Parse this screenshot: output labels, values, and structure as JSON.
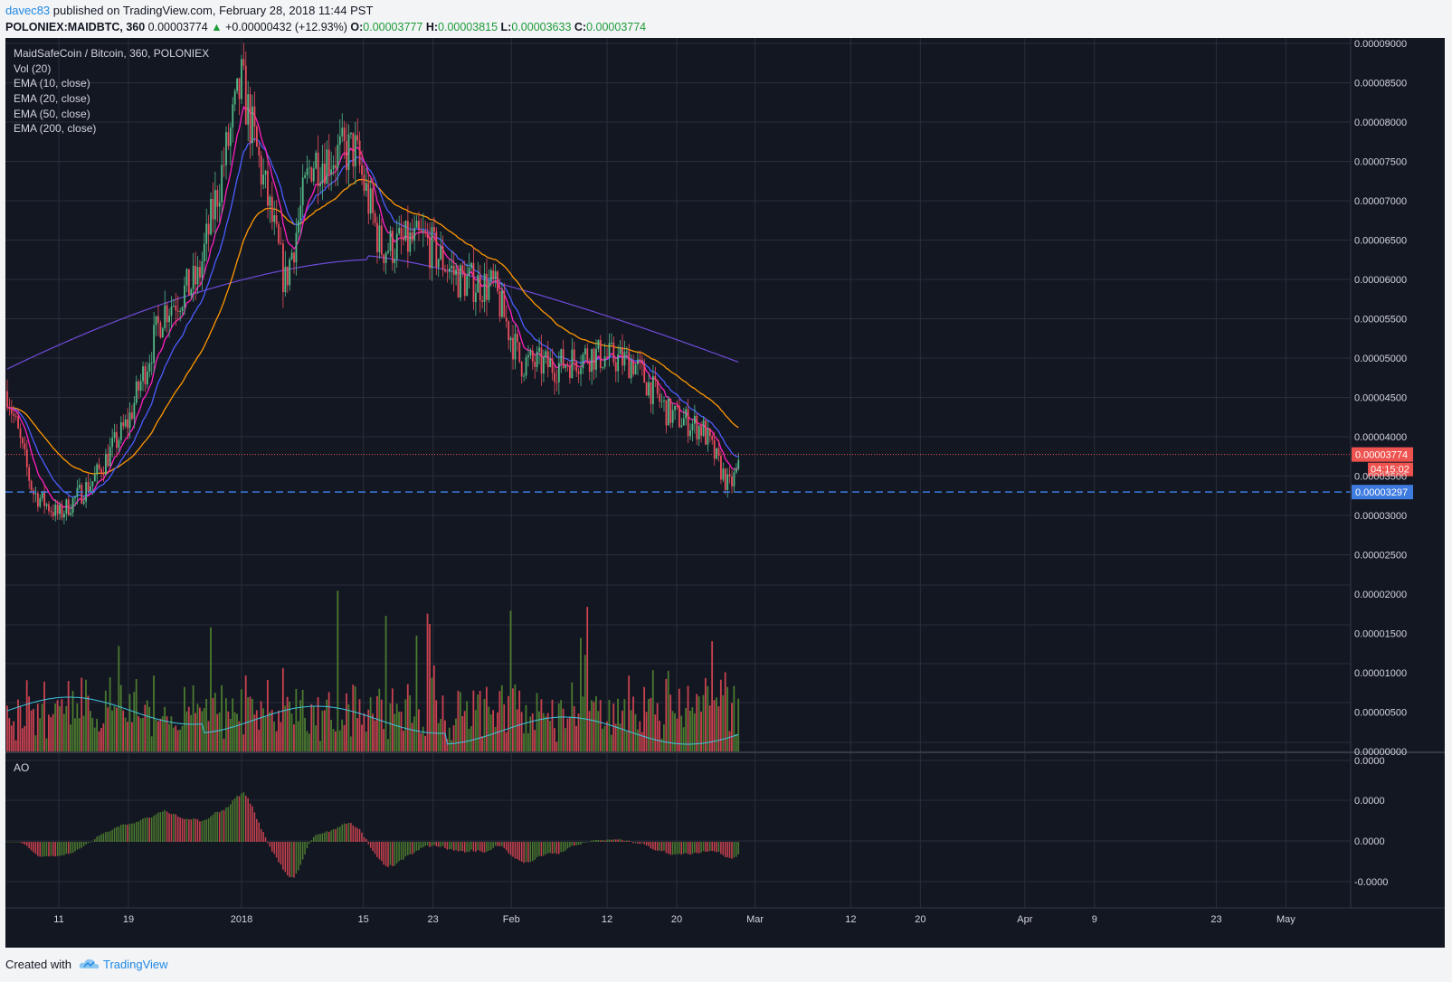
{
  "header": {
    "author": "davec83",
    "published_text": " published on TradingView.com, February 28, 2018 11:44 PST"
  },
  "symbol_bar": {
    "symbol": "POLONIEX:MAIDBTC, 360",
    "last": "0.00003774",
    "change": "+0.00000432 (+12.93%)",
    "open_label": "O:",
    "open": "0.00003777",
    "high_label": "H:",
    "high": "0.00003815",
    "low_label": "L:",
    "low": "0.00003633",
    "close_label": "C:",
    "close": "0.00003774"
  },
  "footer": {
    "created_with": "Created with",
    "brand": "TradingView"
  },
  "colors": {
    "background": "#131722",
    "grid": "#2a2e39",
    "up": "#53b987",
    "down": "#eb4d5c",
    "vol_up": "#4b7a2f",
    "vol_down": "#c9424f",
    "ema10": "#ff1fbf",
    "ema20": "#4a5dff",
    "ema50": "#ff9800",
    "ema200": "#6f4bd9",
    "vol_ma": "#40c6e0",
    "last_price": "#ef5350",
    "hline": "#3d7be0"
  },
  "chart_data": {
    "type": "candlestick",
    "title": "MaidSafeCoin / Bitcoin, 360, POLONIEX",
    "indicators": [
      "Vol (20)",
      "EMA (10, close)",
      "EMA (20, close)",
      "EMA (50, close)",
      "EMA (200, close)"
    ],
    "oscillator_label": "AO",
    "price_axis_ticks": [
      "0.00009000",
      "0.00008500",
      "0.00008000",
      "0.00007500",
      "0.00007000",
      "0.00006500",
      "0.00006000",
      "0.00005500",
      "0.00005000",
      "0.00004500",
      "0.00004000",
      "0.00003500",
      "0.00003000",
      "0.00002500",
      "0.00002000",
      "0.00001500",
      "0.00001000",
      "0.00000500",
      "0.00000000"
    ],
    "price_axis_values": [
      9e-05,
      8.5e-05,
      8e-05,
      7.5e-05,
      7e-05,
      6.5e-05,
      6e-05,
      5.5e-05,
      5e-05,
      4.5e-05,
      4e-05,
      3.5e-05,
      3e-05,
      2.5e-05
    ],
    "ao_axis_ticks": [
      "0.0000",
      "0.0000",
      "0.0000",
      "-0.0000"
    ],
    "time_axis_ticks": [
      "11",
      "19",
      "2018",
      "15",
      "23",
      "Feb",
      "12",
      "20",
      "Mar",
      "12",
      "20",
      "Apr",
      "9",
      "23",
      "May"
    ],
    "last_price_label": "0.00003774",
    "countdown": "04:15:02",
    "horizontal_line_label": "0.00003297",
    "horizontal_line_value": 3.297e-05,
    "price_series_approx": [
      {
        "date": "2017-12-04",
        "close": 5.05e-05
      },
      {
        "date": "2017-12-08",
        "close": 3.3e-05
      },
      {
        "date": "2017-12-11",
        "close": 3e-05
      },
      {
        "date": "2017-12-15",
        "close": 3.45e-05
      },
      {
        "date": "2017-12-19",
        "close": 4.2e-05
      },
      {
        "date": "2017-12-23",
        "close": 5.6e-05
      },
      {
        "date": "2017-12-27",
        "close": 6e-05
      },
      {
        "date": "2018-01-01",
        "close": 8.5e-05
      },
      {
        "date": "2018-01-04",
        "close": 7e-05
      },
      {
        "date": "2018-01-06",
        "close": 5.95e-05
      },
      {
        "date": "2018-01-09",
        "close": 7.5e-05
      },
      {
        "date": "2018-01-14",
        "close": 7.65e-05
      },
      {
        "date": "2018-01-17",
        "close": 6.4e-05
      },
      {
        "date": "2018-01-22",
        "close": 6.5e-05
      },
      {
        "date": "2018-01-26",
        "close": 6e-05
      },
      {
        "date": "2018-01-30",
        "close": 5.9e-05
      },
      {
        "date": "2018-02-02",
        "close": 4.95e-05
      },
      {
        "date": "2018-02-06",
        "close": 4.9e-05
      },
      {
        "date": "2018-02-10",
        "close": 5.05e-05
      },
      {
        "date": "2018-02-15",
        "close": 4.95e-05
      },
      {
        "date": "2018-02-19",
        "close": 4.3e-05
      },
      {
        "date": "2018-02-23",
        "close": 4.1e-05
      },
      {
        "date": "2018-02-26",
        "close": 3.35e-05
      },
      {
        "date": "2018-02-28",
        "close": 3.77e-05
      }
    ]
  }
}
